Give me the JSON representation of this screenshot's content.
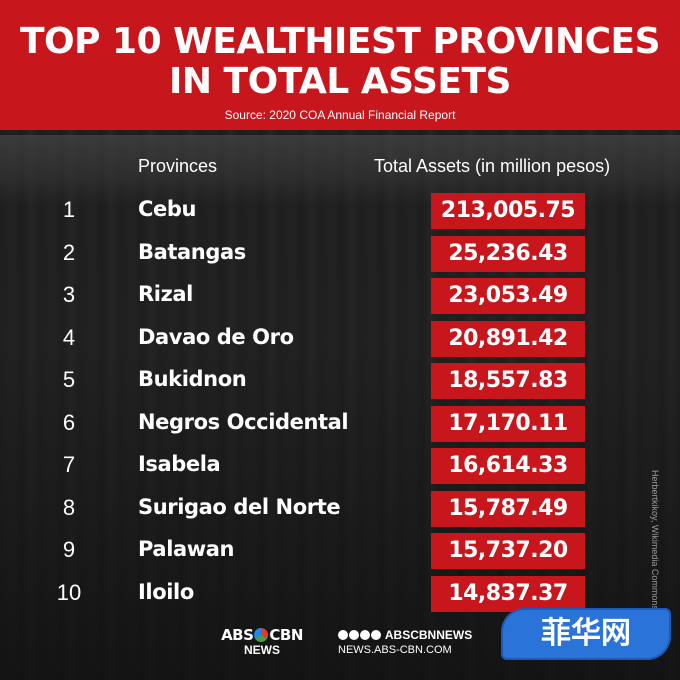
{
  "header": {
    "title_line1": "TOP 10 WEALTHIEST PROVINCES",
    "title_line2": "IN TOTAL ASSETS",
    "source": "Source: 2020 COA Annual Financial Report"
  },
  "columns": {
    "provinces": "Provinces",
    "assets": "Total Assets (in million pesos)"
  },
  "rows": [
    {
      "rank": "1",
      "name": "Cebu",
      "value": "213,005.75"
    },
    {
      "rank": "2",
      "name": "Batangas",
      "value": "25,236.43"
    },
    {
      "rank": "3",
      "name": "Rizal",
      "value": "23,053.49"
    },
    {
      "rank": "4",
      "name": "Davao de Oro",
      "value": "20,891.42"
    },
    {
      "rank": "5",
      "name": "Bukidnon",
      "value": "18,557.83"
    },
    {
      "rank": "6",
      "name": "Negros Occidental",
      "value": "17,170.11"
    },
    {
      "rank": "7",
      "name": "Isabela",
      "value": "16,614.33"
    },
    {
      "rank": "8",
      "name": "Surigao del Norte",
      "value": "15,787.49"
    },
    {
      "rank": "9",
      "name": "Palawan",
      "value": "15,737.20"
    },
    {
      "rank": "10",
      "name": "Iloilo",
      "value": "14,837.37"
    }
  ],
  "photo_credit": "Herbertkikoy, Wikimedia Commons",
  "footer": {
    "logo_left": "ABS",
    "logo_right": "CBN",
    "logo_sub": "NEWS",
    "handle": "ABSCBNNEWS",
    "url": "NEWS.ABS-CBN.COM"
  },
  "watermark": "菲华网",
  "colors": {
    "accent": "#c8161d",
    "background": "#1a1a1a"
  }
}
